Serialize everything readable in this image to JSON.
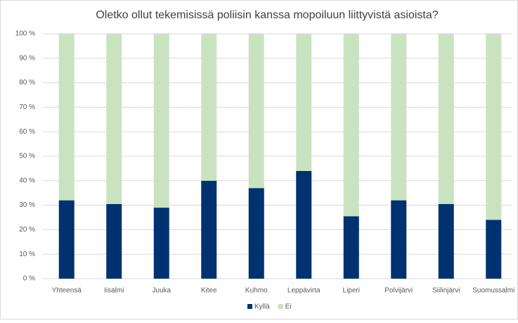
{
  "chart_data": {
    "type": "stacked_bar",
    "title": "Oletko ollut tekemisissä poliisin kanssa mopoiluun liittyvistä asioista?",
    "categories": [
      "Yhteensä",
      "Iisalmi",
      "Juuka",
      "Kitee",
      "Kuhmo",
      "Leppävirta",
      "Liperi",
      "Polvijärvi",
      "Siilinjärvi",
      "Suomussalmi"
    ],
    "series": [
      {
        "name": "Kyllä",
        "color": "#003270",
        "values": [
          32,
          30.5,
          29,
          40,
          37,
          44,
          25.5,
          32,
          30.5,
          24
        ]
      },
      {
        "name": "Ei",
        "color": "#c9e3c0",
        "values": [
          68,
          69.5,
          71,
          60,
          63,
          56,
          74.5,
          68,
          69.5,
          76
        ]
      }
    ],
    "ylim": [
      0,
      100
    ],
    "yticks": [
      {
        "value": 0,
        "label": "0 %"
      },
      {
        "value": 10,
        "label": "10 %"
      },
      {
        "value": 20,
        "label": "20 %"
      },
      {
        "value": 30,
        "label": "30 %"
      },
      {
        "value": 40,
        "label": "40 %"
      },
      {
        "value": 50,
        "label": "50 %"
      },
      {
        "value": 60,
        "label": "60 %"
      },
      {
        "value": 70,
        "label": "70 %"
      },
      {
        "value": 80,
        "label": "80 %"
      },
      {
        "value": 90,
        "label": "90 %"
      },
      {
        "value": 100,
        "label": "100 %"
      }
    ],
    "grid": true,
    "legend": "bottom"
  }
}
